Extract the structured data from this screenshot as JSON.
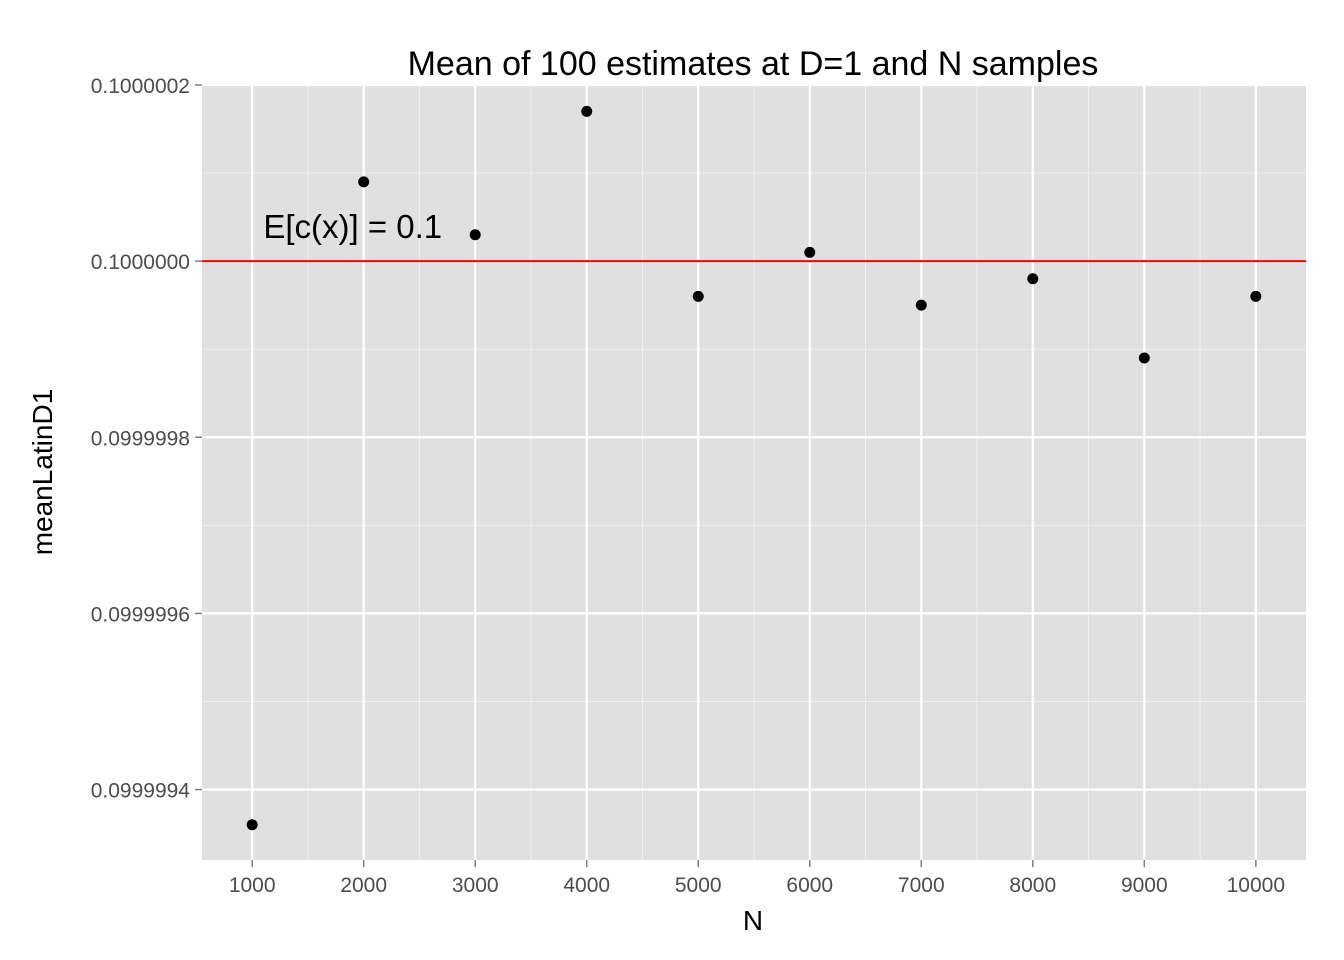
{
  "chart_data": {
    "type": "scatter",
    "title": "Mean of 100 estimates at D=1 and N samples",
    "xlabel": "N",
    "ylabel": "meanLatinD1",
    "x_ticks": [
      "1000",
      "2000",
      "3000",
      "4000",
      "5000",
      "6000",
      "7000",
      "8000",
      "9000",
      "10000"
    ],
    "x_tick_values": [
      1000,
      2000,
      3000,
      4000,
      5000,
      6000,
      7000,
      8000,
      9000,
      10000
    ],
    "y_ticks": [
      "0.0999994",
      "0.0999996",
      "0.0999998",
      "0.1000000",
      "0.1000002"
    ],
    "y_tick_values": [
      0.0999994,
      0.0999996,
      0.0999998,
      0.1,
      0.1000002
    ],
    "xlim": [
      550,
      10450
    ],
    "ylim": [
      0.09999932,
      0.1000002
    ],
    "grid": true,
    "background": "#e0e0e0",
    "point_color": "#000000",
    "points": {
      "x": [
        1000,
        2000,
        3000,
        4000,
        5000,
        6000,
        7000,
        8000,
        9000,
        10000
      ],
      "y": [
        0.09999936,
        0.10000009,
        0.10000003,
        0.10000017,
        0.09999996,
        0.10000001,
        0.09999995,
        0.09999998,
        0.09999989,
        0.09999996
      ]
    },
    "reference_line": {
      "y": 0.1,
      "color": "#ff0000",
      "label": "E[c(x)] = 0.1",
      "label_x": 1100,
      "label_y": 0.10000004
    }
  }
}
